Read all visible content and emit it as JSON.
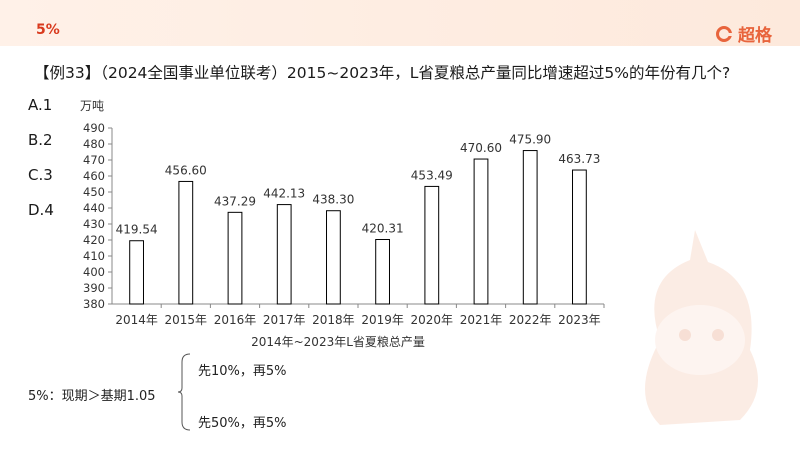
{
  "header": {
    "tag": "5%",
    "brand": "超格"
  },
  "question": "【例33】（2024全国事业单位联考）2015~2023年，L省夏粮总产量同比增速超过5%的年份有几个?",
  "options": [
    "A.1",
    "B.2",
    "C.3",
    "D.4"
  ],
  "notes": {
    "rule": "5%：现期＞基期1.05",
    "branch_top": "先10%，再5%",
    "branch_bottom": "先50%，再5%"
  },
  "colors": {
    "accent": "#e8643c",
    "tag": "#d93a1e",
    "bar_fill": "#ffffff",
    "bar_stroke": "#000000"
  },
  "chart_data": {
    "type": "bar",
    "title": "2014年~2023年L省夏粮总产量",
    "ylabel": "万吨",
    "xlabel": "",
    "categories": [
      "2014年",
      "2015年",
      "2016年",
      "2017年",
      "2018年",
      "2019年",
      "2020年",
      "2021年",
      "2022年",
      "2023年"
    ],
    "values": [
      419.54,
      456.6,
      437.29,
      442.13,
      438.3,
      420.31,
      453.49,
      470.6,
      475.9,
      463.73
    ],
    "data_labels": [
      "419.54",
      "456.60",
      "437.29",
      "442.13",
      "438.30",
      "420.31",
      "453.49",
      "470.60",
      "475.90",
      "463.73"
    ],
    "ylim": [
      380,
      490
    ],
    "yticks": [
      380,
      390,
      400,
      410,
      420,
      430,
      440,
      450,
      460,
      470,
      480,
      490
    ],
    "grid": false,
    "legend": "none"
  }
}
